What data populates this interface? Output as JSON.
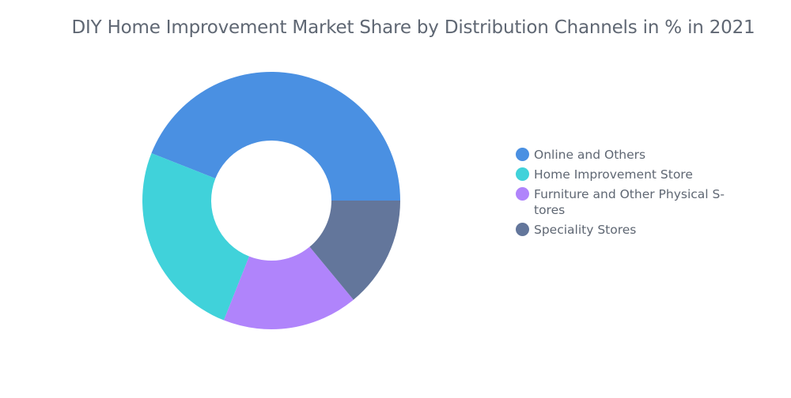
{
  "chart_data": {
    "type": "pie",
    "title": "DIY Home Improvement Market Share by Distribution Channels in % in 2021",
    "categories": [
      "Online and Others",
      "Home Improvement Store",
      "Furniture and Other Physical S-\ntores",
      "Speciality Stores"
    ],
    "values": [
      44,
      25,
      17,
      14
    ],
    "colors": [
      "#4a90e2",
      "#40d2da",
      "#b084fb",
      "#63769b"
    ],
    "legend_position": "right",
    "donut": true
  }
}
